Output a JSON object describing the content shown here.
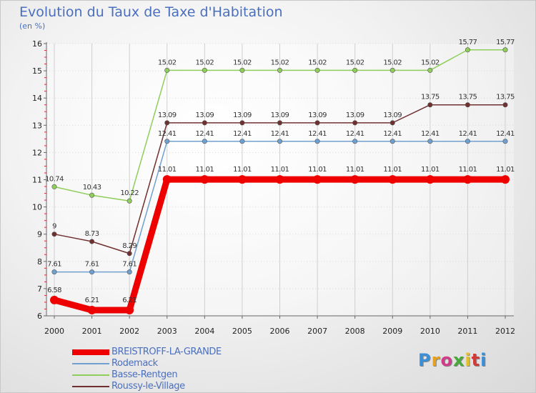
{
  "chart_data": {
    "type": "line",
    "title": "Evolution du Taux de Taxe d'Habitation",
    "ylabel": "(en %)",
    "xlabel": "",
    "ylim": [
      6,
      16
    ],
    "yticks": [
      "6",
      "7",
      "8",
      "9",
      "10",
      "11",
      "12",
      "13",
      "14",
      "15",
      "16"
    ],
    "categories": [
      "2000",
      "2001",
      "2002",
      "2003",
      "2004",
      "2005",
      "2006",
      "2007",
      "2008",
      "2009",
      "2010",
      "2011",
      "2012"
    ],
    "series": [
      {
        "name": "Basse-Rentgen",
        "color": "#8fce5a",
        "values": [
          10.74,
          10.43,
          10.22,
          15.02,
          15.02,
          15.02,
          15.02,
          15.02,
          15.02,
          15.02,
          15.02,
          15.77,
          15.77
        ],
        "labels": [
          "10.74",
          "10.43",
          "10.22",
          "15.02",
          "15.02",
          "15.02",
          "15.02",
          "15.02",
          "15.02",
          "15.02",
          "15.02",
          "15.77",
          "15.77"
        ]
      },
      {
        "name": "Roussy-le-Village",
        "color": "#703030",
        "values": [
          9,
          8.73,
          8.29,
          13.09,
          13.09,
          13.09,
          13.09,
          13.09,
          13.09,
          13.09,
          13.75,
          13.75,
          13.75
        ],
        "labels": [
          "9",
          "8.73",
          "8.29",
          "13.09",
          "13.09",
          "13.09",
          "13.09",
          "13.09",
          "13.09",
          "13.09",
          "13.75",
          "13.75",
          "13.75"
        ]
      },
      {
        "name": "Rodemack",
        "color": "#6fa0cf",
        "values": [
          7.61,
          7.61,
          7.61,
          12.41,
          12.41,
          12.41,
          12.41,
          12.41,
          12.41,
          12.41,
          12.41,
          12.41,
          12.41
        ],
        "labels": [
          "7.61",
          "7.61",
          "7.61",
          "12.41",
          "12.41",
          "12.41",
          "12.41",
          "12.41",
          "12.41",
          "12.41",
          "12.41",
          "12.41",
          "12.41"
        ]
      },
      {
        "name": "BREISTROFF-LA-GRANDE",
        "color": "#ee0000",
        "values": [
          6.58,
          6.21,
          6.21,
          11.01,
          11.01,
          11.01,
          11.01,
          11.01,
          11.01,
          11.01,
          11.01,
          11.01,
          11.01
        ],
        "labels": [
          "6.58",
          "6.21",
          "6.21",
          "11.01",
          "11.01",
          "11.01",
          "11.01",
          "11.01",
          "11.01",
          "11.01",
          "11.01",
          "11.01",
          "11.01"
        ]
      }
    ],
    "legend": [
      {
        "name": "BREISTROFF-LA-GRANDE",
        "color": "#ee0000"
      },
      {
        "name": "Rodemack",
        "color": "#6fa0cf"
      },
      {
        "name": "Basse-Rentgen",
        "color": "#8fce5a"
      },
      {
        "name": "Roussy-le-Village",
        "color": "#703030"
      }
    ],
    "legend_position": "bottom-left"
  },
  "logo": {
    "text": "Proxiti"
  }
}
